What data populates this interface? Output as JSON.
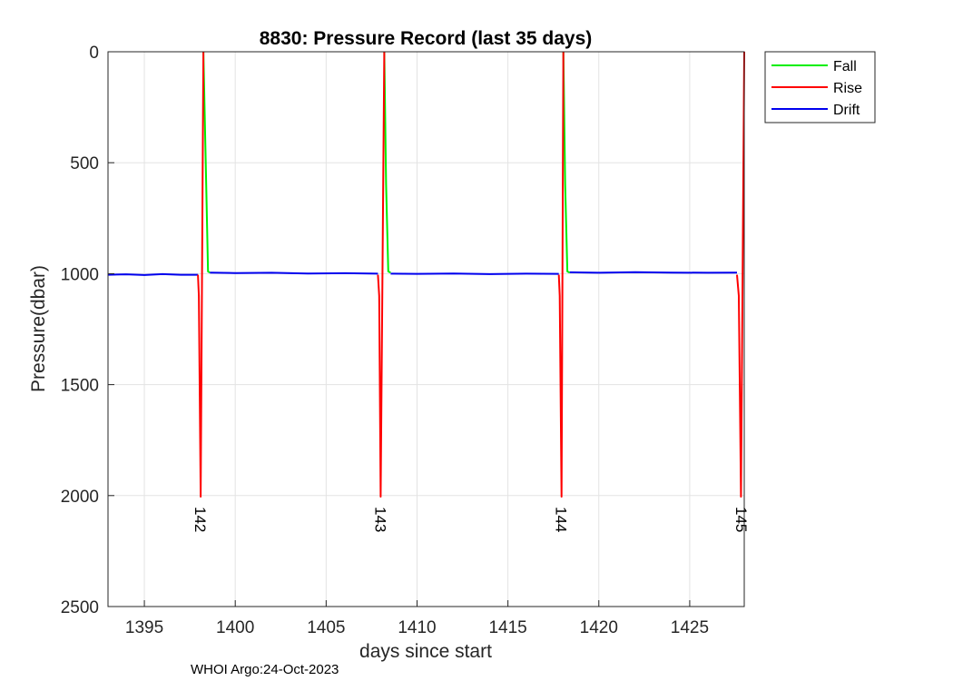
{
  "chart_data": {
    "type": "line",
    "title": "8830: Pressure Record (last 35 days)",
    "xlabel": "days since start",
    "ylabel": "Pressure(dbar)",
    "xlim": [
      1393,
      1428
    ],
    "ylim": [
      0,
      2500
    ],
    "y_reversed": true,
    "xticks": [
      1395,
      1400,
      1405,
      1410,
      1415,
      1420,
      1425
    ],
    "yticks": [
      0,
      500,
      1000,
      1500,
      2000,
      2500
    ],
    "grid": true,
    "legend_position": "outside-top-right",
    "colors": {
      "Fall": "#00ee00",
      "Rise": "#ff0000",
      "Drift": "#0000ee"
    },
    "series": [
      {
        "name": "Fall",
        "segments": [
          {
            "x": [
              1398.25,
              1398.4,
              1398.5,
              1398.6
            ],
            "y": [
              0,
              600,
              990,
              995
            ]
          },
          {
            "x": [
              1408.2,
              1408.3,
              1408.42,
              1408.55
            ],
            "y": [
              0,
              600,
              990,
              995
            ]
          },
          {
            "x": [
              1418.05,
              1418.15,
              1418.27,
              1418.4
            ],
            "y": [
              0,
              600,
              990,
              995
            ]
          }
        ]
      },
      {
        "name": "Rise",
        "segments": [
          {
            "x": [
              1397.95,
              1398.0,
              1398.1,
              1398.25
            ],
            "y": [
              1005,
              1100,
              2005,
              0
            ]
          },
          {
            "x": [
              1407.85,
              1407.92,
              1408.0,
              1408.2
            ],
            "y": [
              1005,
              1100,
              2005,
              0
            ]
          },
          {
            "x": [
              1417.8,
              1417.85,
              1417.95,
              1418.05
            ],
            "y": [
              1005,
              1100,
              2005,
              0
            ]
          },
          {
            "x": [
              1427.6,
              1427.7,
              1427.82,
              1428.0
            ],
            "y": [
              1005,
              1100,
              2005,
              0
            ]
          }
        ]
      },
      {
        "name": "Drift",
        "segments": [
          {
            "x": [
              1393,
              1394,
              1395,
              1396,
              1397,
              1397.95
            ],
            "y": [
              1005,
              1003,
              1006,
              1002,
              1005,
              1005
            ]
          },
          {
            "x": [
              1398.6,
              1400,
              1402,
              1404,
              1406,
              1407.85
            ],
            "y": [
              995,
              997,
              996,
              999,
              998,
              1000
            ]
          },
          {
            "x": [
              1408.55,
              1410,
              1412,
              1414,
              1416,
              1417.8
            ],
            "y": [
              1000,
              1001,
              999,
              1002,
              1000,
              1001
            ]
          },
          {
            "x": [
              1418.4,
              1420,
              1422,
              1424,
              1426,
              1427.6
            ],
            "y": [
              994,
              996,
              993,
              995,
              996,
              995
            ]
          }
        ]
      }
    ],
    "annotations": [
      {
        "text": "142",
        "x": 1398.1,
        "y": 2050
      },
      {
        "text": "143",
        "x": 1408.0,
        "y": 2050
      },
      {
        "text": "144",
        "x": 1417.95,
        "y": 2050
      },
      {
        "text": "145",
        "x": 1427.85,
        "y": 2050
      }
    ]
  },
  "footer": "WHOI Argo:24-Oct-2023"
}
